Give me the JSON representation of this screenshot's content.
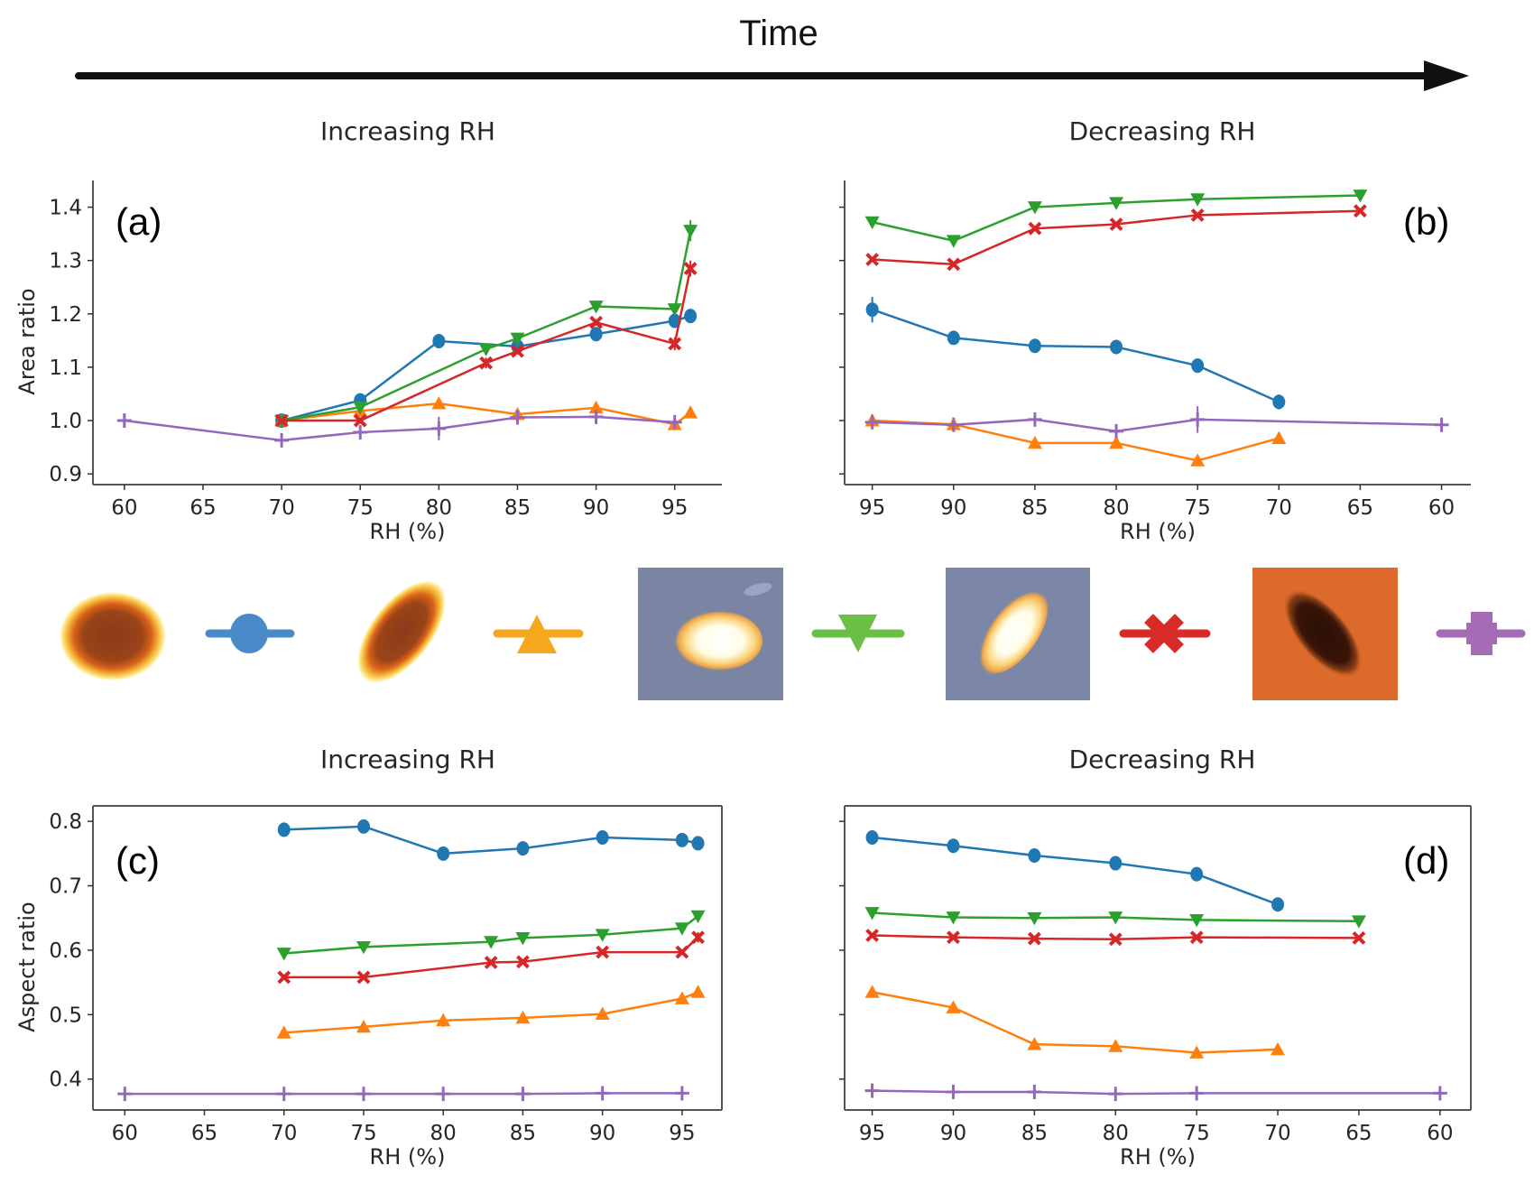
{
  "header": {
    "time_label": "Time",
    "left_title": "Increasing RH",
    "right_title": "Decreasing RH"
  },
  "series_styles": [
    {
      "name": "series-blue-circle",
      "color": "#1f77b4",
      "marker": "circle"
    },
    {
      "name": "series-orange-triangle-up",
      "color": "#ff7f0e",
      "marker": "triangle-up"
    },
    {
      "name": "series-green-triangle-down",
      "color": "#2ca02c",
      "marker": "triangle-down"
    },
    {
      "name": "series-red-x",
      "color": "#d62728",
      "marker": "x"
    },
    {
      "name": "series-purple-plus",
      "color": "#9467bd",
      "marker": "plus"
    }
  ],
  "legend_strip": {
    "items": [
      {
        "image": "thermal-blob-round",
        "marker": "circle",
        "color": "#4a8ac9"
      },
      {
        "image": "thermal-blob-elongated",
        "marker": "triangle-up",
        "color": "#f5a81c"
      },
      {
        "image": "bright-particle-round-on-blue",
        "marker": "triangle-down",
        "color": "#6abf45"
      },
      {
        "image": "bright-particle-elongated-on-blue",
        "marker": "x",
        "color": "#d82a27"
      },
      {
        "image": "dark-particle-on-orange",
        "marker": "plus",
        "color": "#a56bb5"
      }
    ]
  },
  "chart_data": [
    {
      "id": "a",
      "type": "line",
      "panel_label": "(a)",
      "title": "Increasing RH",
      "xlabel": "RH (%)",
      "ylabel": "Area ratio",
      "xlim": [
        58,
        98
      ],
      "xdir": "normal",
      "ylim": [
        0.88,
        1.45
      ],
      "xticks": [
        60,
        65,
        70,
        75,
        80,
        85,
        90,
        95
      ],
      "yticks": [
        0.9,
        1.0,
        1.1,
        1.2,
        1.3,
        1.4
      ],
      "ytick_labels": [
        "0.9",
        "1.0",
        "1.1",
        "1.2",
        "1.3",
        "1.4"
      ],
      "frame": "left-bottom",
      "letter_pos": "top-left",
      "series": [
        {
          "style": 0,
          "x": [
            70,
            75,
            80,
            85,
            90,
            95,
            96
          ],
          "y": [
            1.0,
            1.038,
            1.149,
            1.139,
            1.162,
            1.187,
            1.196
          ],
          "err": [
            0.004,
            0.006,
            0.008,
            0.006,
            0.01,
            0.01,
            0.006
          ]
        },
        {
          "style": 1,
          "x": [
            70,
            75,
            80,
            85,
            90,
            95,
            96
          ],
          "y": [
            1.0,
            1.018,
            1.032,
            1.012,
            1.024,
            0.993,
            1.015
          ],
          "err": [
            0.004,
            0.006,
            0.008,
            0.008,
            0.01,
            0.006,
            0.006
          ]
        },
        {
          "style": 2,
          "x": [
            70,
            75,
            83,
            85,
            90,
            95,
            96
          ],
          "y": [
            1.0,
            1.025,
            1.134,
            1.154,
            1.214,
            1.209,
            1.356
          ],
          "err": [
            0.004,
            0.008,
            0.01,
            0.006,
            0.005,
            0.01,
            0.02
          ]
        },
        {
          "style": 3,
          "x": [
            70,
            75,
            83,
            85,
            90,
            95,
            96
          ],
          "y": [
            1.0,
            1.0,
            1.108,
            1.13,
            1.184,
            1.144,
            1.285
          ],
          "err": [
            0.004,
            0.006,
            0.01,
            0.006,
            0.006,
            0.012,
            0.015
          ]
        },
        {
          "style": 4,
          "x": [
            60,
            70,
            75,
            80,
            85,
            90,
            95
          ],
          "y": [
            1.0,
            0.963,
            0.978,
            0.985,
            1.006,
            1.007,
            0.997
          ],
          "err": [
            0.006,
            0.008,
            0.008,
            0.022,
            0.008,
            0.008,
            0.01
          ]
        }
      ]
    },
    {
      "id": "b",
      "type": "line",
      "panel_label": "(b)",
      "title": "Decreasing RH",
      "xlabel": "RH (%)",
      "ylabel": "",
      "xlim": [
        96.7,
        58.2
      ],
      "xdir": "reversed",
      "ylim": [
        0.88,
        1.45
      ],
      "xticks": [
        95,
        90,
        85,
        80,
        75,
        70,
        65,
        60
      ],
      "yticks": [
        0.9,
        1.0,
        1.1,
        1.2,
        1.3,
        1.4
      ],
      "ytick_labels": [],
      "frame": "left-bottom",
      "letter_pos": "top-right",
      "series": [
        {
          "style": 0,
          "x": [
            95,
            90,
            85,
            80,
            75,
            70
          ],
          "y": [
            1.208,
            1.155,
            1.14,
            1.138,
            1.103,
            1.035
          ],
          "err": [
            0.024,
            0.01,
            0.004,
            0.01,
            0.004,
            0.014
          ]
        },
        {
          "style": 1,
          "x": [
            95,
            90,
            85,
            80,
            75,
            70
          ],
          "y": [
            1.0,
            0.993,
            0.958,
            0.958,
            0.925,
            0.967
          ],
          "err": [
            0.006,
            0.006,
            0.004,
            0.004,
            0.004,
            0.004
          ]
        },
        {
          "style": 2,
          "x": [
            95,
            90,
            85,
            80,
            75,
            65
          ],
          "y": [
            1.372,
            1.337,
            1.4,
            1.408,
            1.415,
            1.422
          ],
          "err": [
            0.004,
            0.004,
            0.004,
            0.004,
            0.004,
            0.004
          ]
        },
        {
          "style": 3,
          "x": [
            95,
            90,
            85,
            80,
            75,
            65
          ],
          "y": [
            1.302,
            1.293,
            1.36,
            1.368,
            1.385,
            1.393
          ],
          "err": [
            0.004,
            0.004,
            0.004,
            0.004,
            0.004,
            0.004
          ]
        },
        {
          "style": 4,
          "x": [
            95,
            90,
            85,
            80,
            75,
            60
          ],
          "y": [
            0.997,
            0.992,
            1.002,
            0.98,
            1.002,
            0.992
          ],
          "err": [
            0.006,
            0.008,
            0.006,
            0.008,
            0.025,
            0.004
          ]
        }
      ]
    },
    {
      "id": "c",
      "type": "line",
      "panel_label": "(c)",
      "title": "Increasing RH",
      "xlabel": "RH (%)",
      "ylabel": "Aspect ratio",
      "xlim": [
        58,
        97.5
      ],
      "xdir": "normal",
      "ylim": [
        0.352,
        0.824
      ],
      "xticks": [
        60,
        65,
        70,
        75,
        80,
        85,
        90,
        95
      ],
      "yticks": [
        0.4,
        0.5,
        0.6,
        0.7,
        0.8
      ],
      "ytick_labels": [
        "0.4",
        "0.5",
        "0.6",
        "0.7",
        "0.8"
      ],
      "frame": "box",
      "letter_pos": "top-left",
      "series": [
        {
          "style": 0,
          "x": [
            70,
            75,
            80,
            85,
            90,
            95,
            96
          ],
          "y": [
            0.787,
            0.792,
            0.75,
            0.758,
            0.775,
            0.771,
            0.766
          ],
          "err": [
            0.004,
            0.01,
            0.004,
            0.004,
            0.004,
            0.004,
            0.006
          ]
        },
        {
          "style": 1,
          "x": [
            70,
            75,
            80,
            85,
            90,
            95,
            96
          ],
          "y": [
            0.472,
            0.481,
            0.491,
            0.495,
            0.501,
            0.525,
            0.535
          ],
          "err": [
            0.004,
            0.008,
            0.01,
            0.006,
            0.006,
            0.006,
            0.006
          ]
        },
        {
          "style": 2,
          "x": [
            70,
            75,
            83,
            85,
            90,
            95,
            96
          ],
          "y": [
            0.595,
            0.605,
            0.613,
            0.619,
            0.624,
            0.634,
            0.653
          ],
          "err": [
            0.004,
            0.006,
            0.006,
            0.004,
            0.006,
            0.004,
            0.008
          ]
        },
        {
          "style": 3,
          "x": [
            70,
            75,
            83,
            85,
            90,
            95,
            96
          ],
          "y": [
            0.558,
            0.558,
            0.581,
            0.582,
            0.597,
            0.597,
            0.62
          ],
          "err": [
            0.004,
            0.004,
            0.004,
            0.004,
            0.004,
            0.004,
            0.008
          ]
        },
        {
          "style": 4,
          "x": [
            60,
            70,
            75,
            80,
            85,
            90,
            95
          ],
          "y": [
            0.377,
            0.377,
            0.377,
            0.377,
            0.377,
            0.378,
            0.378
          ],
          "err": [
            0.004,
            0.004,
            0.004,
            0.004,
            0.004,
            0.004,
            0.004
          ]
        }
      ]
    },
    {
      "id": "d",
      "type": "line",
      "panel_label": "(d)",
      "title": "Decreasing RH",
      "xlabel": "RH (%)",
      "ylabel": "",
      "xlim": [
        96.7,
        58.1
      ],
      "xdir": "reversed",
      "ylim": [
        0.352,
        0.824
      ],
      "xticks": [
        95,
        90,
        85,
        80,
        75,
        70,
        65,
        60
      ],
      "yticks": [
        0.4,
        0.5,
        0.6,
        0.7,
        0.8
      ],
      "ytick_labels": [],
      "frame": "box",
      "letter_pos": "top-right",
      "series": [
        {
          "style": 0,
          "x": [
            95,
            90,
            85,
            80,
            75,
            70
          ],
          "y": [
            0.775,
            0.762,
            0.747,
            0.735,
            0.718,
            0.671
          ],
          "err": [
            0.004,
            0.004,
            0.004,
            0.004,
            0.004,
            0.01
          ]
        },
        {
          "style": 1,
          "x": [
            95,
            90,
            85,
            80,
            75,
            70
          ],
          "y": [
            0.535,
            0.511,
            0.454,
            0.451,
            0.441,
            0.446
          ],
          "err": [
            0.004,
            0.004,
            0.004,
            0.004,
            0.004,
            0.004
          ]
        },
        {
          "style": 2,
          "x": [
            95,
            90,
            85,
            80,
            75,
            65
          ],
          "y": [
            0.658,
            0.651,
            0.65,
            0.651,
            0.647,
            0.645
          ],
          "err": [
            0.004,
            0.004,
            0.004,
            0.004,
            0.004,
            0.004
          ]
        },
        {
          "style": 3,
          "x": [
            95,
            90,
            85,
            80,
            75,
            65
          ],
          "y": [
            0.623,
            0.62,
            0.618,
            0.617,
            0.62,
            0.619
          ],
          "err": [
            0.004,
            0.004,
            0.004,
            0.004,
            0.004,
            0.004
          ]
        },
        {
          "style": 4,
          "x": [
            95,
            90,
            85,
            80,
            75,
            60
          ],
          "y": [
            0.382,
            0.38,
            0.38,
            0.377,
            0.378,
            0.378
          ],
          "err": [
            0.004,
            0.004,
            0.004,
            0.004,
            0.004,
            0.004
          ]
        }
      ]
    }
  ]
}
